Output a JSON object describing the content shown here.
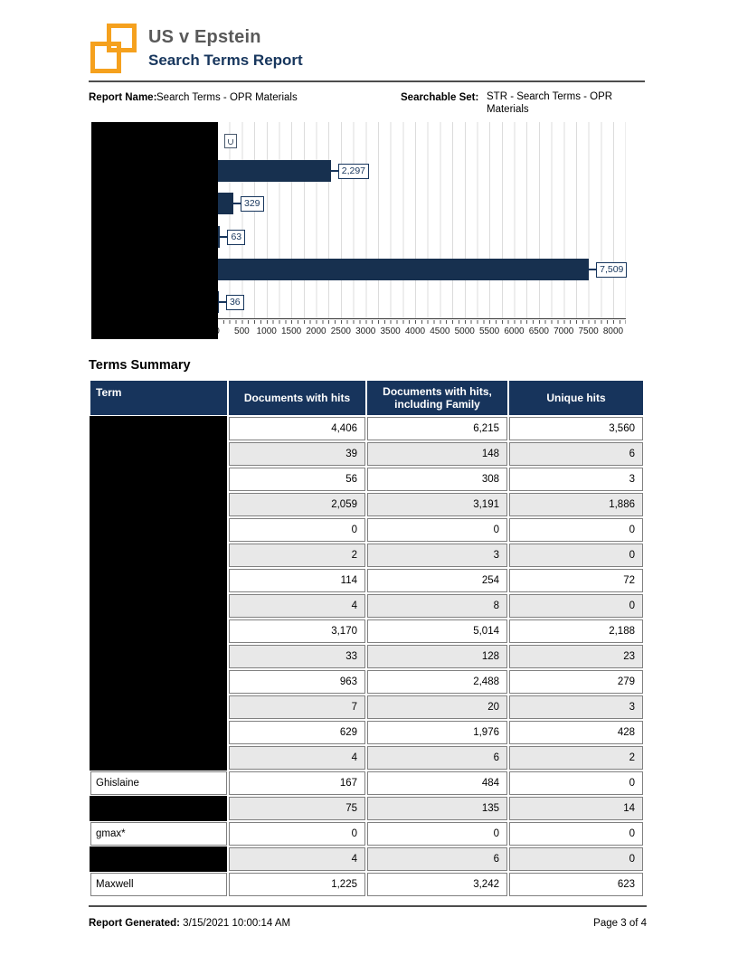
{
  "header": {
    "case_title": "US v Epstein",
    "report_title": "Search Terms Report"
  },
  "meta": {
    "report_name_label": "Report Name:",
    "report_name_value": "Search Terms - OPR Materials",
    "searchable_set_label": "Searchable Set:",
    "searchable_set_value": "STR - Search Terms - OPR Materials"
  },
  "chart_data": {
    "type": "bar",
    "orientation": "horizontal",
    "title": "",
    "xlabel": "",
    "ylabel": "",
    "xlim": [
      0,
      8000
    ],
    "grid": true,
    "bar_color": "#17304F",
    "categories": [
      "[redacted]",
      "[redacted]",
      "[redacted]",
      "[redacted]",
      "[redacted]",
      "[redacted]"
    ],
    "values": [
      null,
      2297,
      329,
      63,
      7509,
      36
    ],
    "value_labels": [
      "",
      "2,297",
      "329",
      "63",
      "7,509",
      "36"
    ],
    "top_label_clipped": true,
    "x_tick_labels": [
      "0",
      "500",
      "1000",
      "1500",
      "2000",
      "2500",
      "3000",
      "3500",
      "4000",
      "4500",
      "5000",
      "5500",
      "6000",
      "6500",
      "7000",
      "7500",
      "8000"
    ],
    "note": "category axis labels hidden by black redaction box; first bar value label clipped at chart top"
  },
  "table": {
    "section_title": "Terms Summary",
    "columns": [
      "Term",
      "Documents with hits",
      "Documents with hits, including Family",
      "Unique hits"
    ],
    "rows": [
      {
        "term": "",
        "redacted": true,
        "docs": "4,406",
        "family": "6,215",
        "unique": "3,560"
      },
      {
        "term": "",
        "redacted": true,
        "docs": "39",
        "family": "148",
        "unique": "6"
      },
      {
        "term": "",
        "redacted": true,
        "docs": "56",
        "family": "308",
        "unique": "3"
      },
      {
        "term": "",
        "redacted": true,
        "docs": "2,059",
        "family": "3,191",
        "unique": "1,886"
      },
      {
        "term": "",
        "redacted": true,
        "docs": "0",
        "family": "0",
        "unique": "0"
      },
      {
        "term": "",
        "redacted": true,
        "docs": "2",
        "family": "3",
        "unique": "0"
      },
      {
        "term": "",
        "redacted": true,
        "docs": "114",
        "family": "254",
        "unique": "72"
      },
      {
        "term": "",
        "redacted": true,
        "docs": "4",
        "family": "8",
        "unique": "0"
      },
      {
        "term": "",
        "redacted": true,
        "docs": "3,170",
        "family": "5,014",
        "unique": "2,188"
      },
      {
        "term": "",
        "redacted": true,
        "docs": "33",
        "family": "128",
        "unique": "23"
      },
      {
        "term": "",
        "redacted": true,
        "docs": "963",
        "family": "2,488",
        "unique": "279"
      },
      {
        "term": "",
        "redacted": true,
        "docs": "7",
        "family": "20",
        "unique": "3"
      },
      {
        "term": "",
        "redacted": true,
        "docs": "629",
        "family": "1,976",
        "unique": "428"
      },
      {
        "term": "",
        "redacted": true,
        "docs": "4",
        "family": "6",
        "unique": "2"
      },
      {
        "term": "Ghislaine",
        "redacted": false,
        "docs": "167",
        "family": "484",
        "unique": "0"
      },
      {
        "term": "",
        "redacted": true,
        "docs": "75",
        "family": "135",
        "unique": "14"
      },
      {
        "term": "gmax*",
        "redacted": false,
        "docs": "0",
        "family": "0",
        "unique": "0"
      },
      {
        "term": "",
        "redacted": true,
        "docs": "4",
        "family": "6",
        "unique": "0"
      },
      {
        "term": "Maxwell",
        "redacted": false,
        "docs": "1,225",
        "family": "3,242",
        "unique": "623"
      }
    ]
  },
  "footer": {
    "generated_label": "Report Generated:",
    "generated_value": "3/15/2021 10:00:14 AM",
    "page_label": "Page 3 of 4"
  },
  "colors": {
    "accent_orange": "#F5A11E",
    "title_gray": "#595959",
    "navy": "#17365D",
    "bar_navy": "#17304F",
    "header_navy": "#17345C",
    "row_alt_gray": "#E8E8E8",
    "redaction_black": "#000000"
  }
}
